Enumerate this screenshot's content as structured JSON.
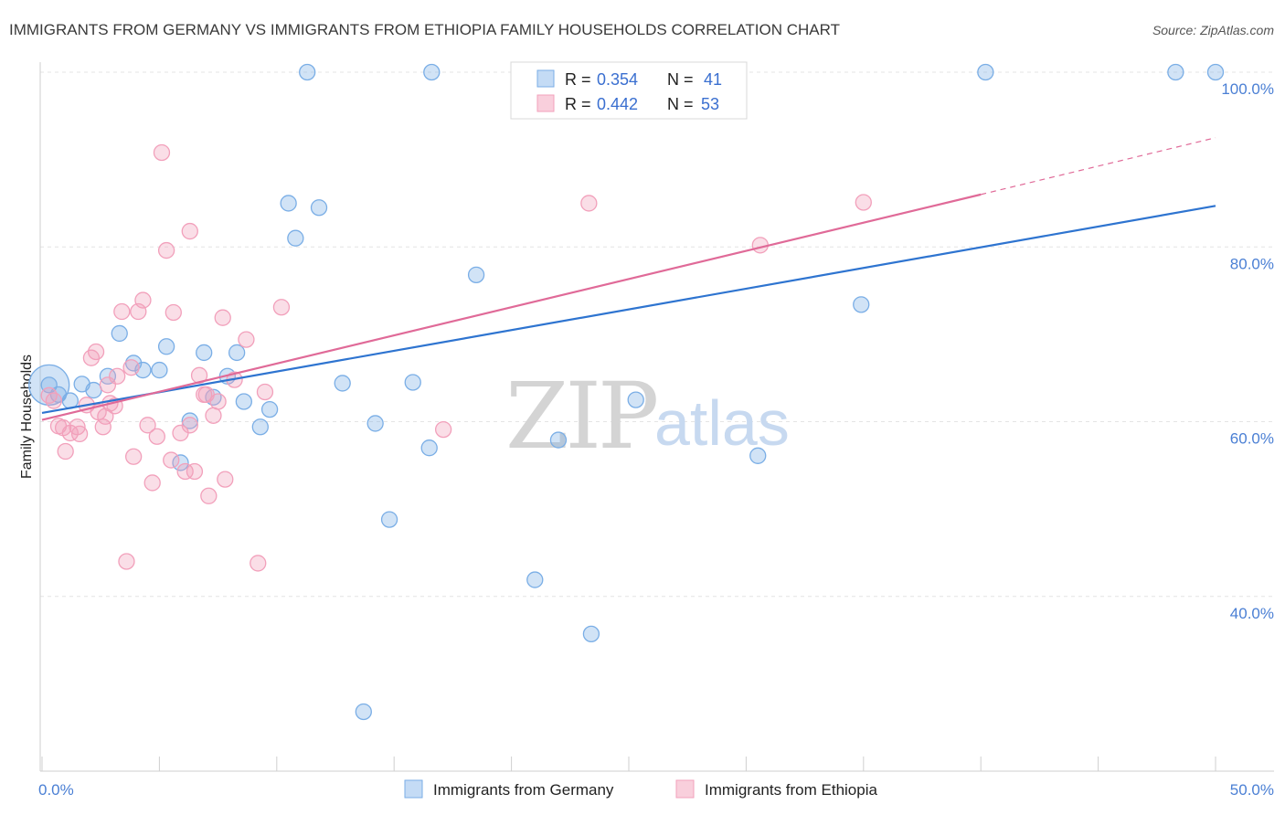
{
  "chart_data": {
    "type": "scatter",
    "title": "IMMIGRANTS FROM GERMANY VS IMMIGRANTS FROM ETHIOPIA FAMILY HOUSEHOLDS CORRELATION CHART",
    "source": "Source: ZipAtlas.com",
    "ylabel": "Family Households",
    "xlim": [
      0,
      50
    ],
    "ylim": [
      20,
      100
    ],
    "x_tick_labels": {
      "left": "0.0%",
      "right": "50.0%"
    },
    "y_ticks": [
      {
        "value": 100,
        "label": "100.0%"
      },
      {
        "value": 80,
        "label": "80.0%"
      },
      {
        "value": 60,
        "label": "60.0%"
      },
      {
        "value": 40,
        "label": "40.0%"
      }
    ],
    "grid": true,
    "legend": {
      "placement": "top-center",
      "entries": [
        {
          "r_label": "R =",
          "r_value": "0.354",
          "n_label": "N =",
          "n_value": "41"
        },
        {
          "r_label": "R =",
          "r_value": "0.442",
          "n_label": "N =",
          "n_value": "53"
        }
      ]
    },
    "watermark": {
      "zip": "ZIP",
      "atlas": "atlas"
    },
    "series": [
      {
        "name": "Immigrants from Germany",
        "color": "#7aaee6",
        "line_color": "#2e74d0",
        "trend": {
          "x": [
            0,
            50
          ],
          "y": [
            61.0,
            84.7
          ]
        },
        "points": [
          [
            0.3,
            64.2
          ],
          [
            0.7,
            63.1
          ],
          [
            1.2,
            62.4
          ],
          [
            1.7,
            64.3
          ],
          [
            2.2,
            63.6
          ],
          [
            2.8,
            65.2
          ],
          [
            3.3,
            70.1
          ],
          [
            3.9,
            66.7
          ],
          [
            4.3,
            65.9
          ],
          [
            5.0,
            65.9
          ],
          [
            5.3,
            68.6
          ],
          [
            5.9,
            55.3
          ],
          [
            6.3,
            60.1
          ],
          [
            6.9,
            67.9
          ],
          [
            7.3,
            62.8
          ],
          [
            7.9,
            65.2
          ],
          [
            8.3,
            67.9
          ],
          [
            8.6,
            62.3
          ],
          [
            9.3,
            59.4
          ],
          [
            9.7,
            61.4
          ],
          [
            10.5,
            85.0
          ],
          [
            10.8,
            81.0
          ],
          [
            11.3,
            100.0
          ],
          [
            11.8,
            84.5
          ],
          [
            12.8,
            64.4
          ],
          [
            13.7,
            26.8
          ],
          [
            14.2,
            59.8
          ],
          [
            14.8,
            48.8
          ],
          [
            15.8,
            64.5
          ],
          [
            16.5,
            57.0
          ],
          [
            16.6,
            100.0
          ],
          [
            18.5,
            76.8
          ],
          [
            21.0,
            41.9
          ],
          [
            22.0,
            57.9
          ],
          [
            23.4,
            35.7
          ],
          [
            25.3,
            62.5
          ],
          [
            30.5,
            56.1
          ],
          [
            34.9,
            73.4
          ],
          [
            40.2,
            100.0
          ],
          [
            48.3,
            100.0
          ],
          [
            50.0,
            100.0
          ]
        ]
      },
      {
        "name": "Immigrants from Ethiopia",
        "color": "#f2a0bb",
        "line_color": "#e06a98",
        "trend": {
          "x": [
            0,
            40
          ],
          "y": [
            60.2,
            86.0
          ]
        },
        "trend_dashed": {
          "x": [
            40,
            50
          ],
          "y": [
            86.0,
            92.5
          ]
        },
        "points": [
          [
            0.3,
            63.0
          ],
          [
            0.5,
            62.4
          ],
          [
            0.7,
            59.5
          ],
          [
            0.9,
            59.3
          ],
          [
            1.0,
            56.6
          ],
          [
            1.2,
            58.7
          ],
          [
            1.5,
            59.4
          ],
          [
            1.6,
            58.6
          ],
          [
            1.9,
            61.9
          ],
          [
            2.1,
            67.3
          ],
          [
            2.3,
            68.0
          ],
          [
            2.4,
            61.1
          ],
          [
            2.6,
            59.4
          ],
          [
            2.7,
            60.6
          ],
          [
            2.8,
            64.2
          ],
          [
            2.9,
            62.1
          ],
          [
            3.1,
            61.8
          ],
          [
            3.2,
            65.2
          ],
          [
            3.4,
            72.6
          ],
          [
            3.6,
            44.0
          ],
          [
            3.8,
            66.2
          ],
          [
            3.9,
            56.0
          ],
          [
            4.1,
            72.6
          ],
          [
            4.3,
            73.9
          ],
          [
            4.5,
            59.6
          ],
          [
            4.7,
            53.0
          ],
          [
            4.9,
            58.3
          ],
          [
            5.1,
            90.8
          ],
          [
            5.3,
            79.6
          ],
          [
            5.5,
            55.6
          ],
          [
            5.6,
            72.5
          ],
          [
            5.9,
            58.7
          ],
          [
            6.1,
            54.3
          ],
          [
            6.3,
            81.8
          ],
          [
            6.5,
            54.3
          ],
          [
            6.7,
            65.3
          ],
          [
            6.9,
            63.1
          ],
          [
            7.1,
            51.5
          ],
          [
            7.3,
            60.7
          ],
          [
            7.5,
            62.3
          ],
          [
            7.7,
            71.9
          ],
          [
            7.8,
            53.4
          ],
          [
            8.2,
            64.8
          ],
          [
            8.7,
            69.4
          ],
          [
            9.2,
            43.8
          ],
          [
            9.5,
            63.4
          ],
          [
            10.2,
            73.1
          ],
          [
            17.1,
            59.1
          ],
          [
            23.3,
            85.0
          ],
          [
            30.6,
            80.2
          ],
          [
            35.0,
            85.1
          ],
          [
            6.3,
            59.6
          ],
          [
            7.0,
            63.1
          ]
        ]
      }
    ]
  }
}
